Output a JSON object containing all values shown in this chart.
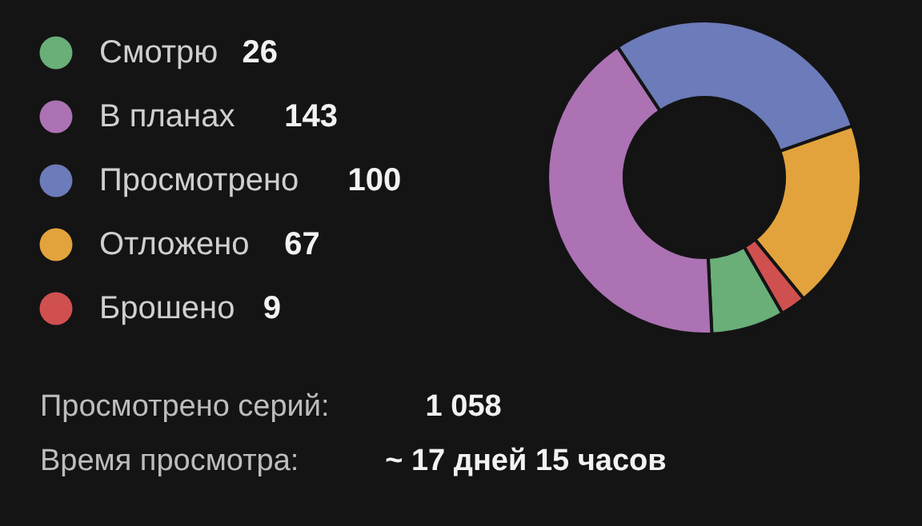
{
  "chart_data": {
    "type": "donut",
    "categories": [
      "Смотрю",
      "В планах",
      "Просмотрено",
      "Отложено",
      "Брошено"
    ],
    "values": [
      26,
      143,
      100,
      67,
      9
    ],
    "colors": [
      "#6aae78",
      "#ac72b4",
      "#6c7bb9",
      "#e2a33c",
      "#d05050"
    ],
    "data_labels": true,
    "legend": "left",
    "annotations": [
      "Просмотрено серий: 1 058",
      "Время просмотра: ~ 17 дней 15 часов"
    ]
  }
}
